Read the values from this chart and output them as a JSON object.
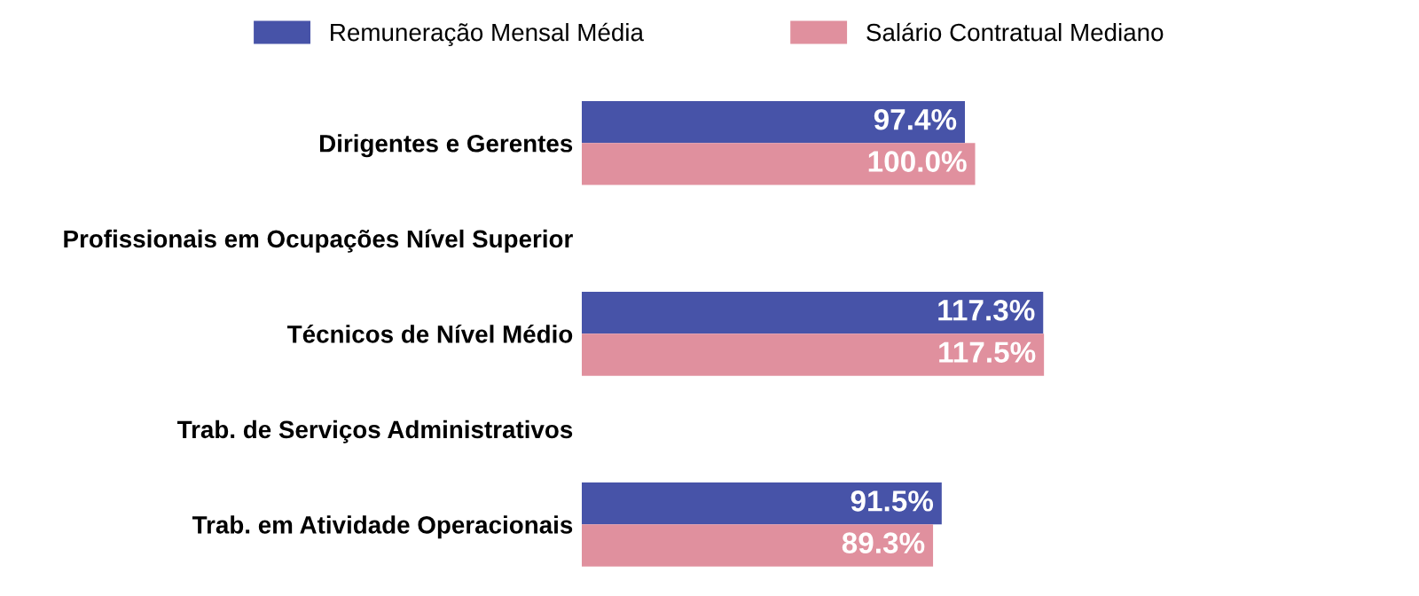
{
  "chart_data": {
    "type": "bar",
    "orientation": "horizontal",
    "categories": [
      "Dirigentes e Gerentes",
      "Profissionais em Ocupações Nível Superior",
      "Técnicos de Nível Médio",
      "Trab. de Serviços Administrativos",
      "Trab. em Atividade Operacionais"
    ],
    "series": [
      {
        "name": "Remuneração Mensal Média",
        "color": "#4753a8",
        "values": [
          97.4,
          null,
          117.3,
          null,
          91.5
        ],
        "value_labels": [
          "97.4%",
          null,
          "117.3%",
          null,
          "91.5%"
        ]
      },
      {
        "name": "Salário Contratual Mediano",
        "color": "#e0909e",
        "values": [
          100.0,
          null,
          117.5,
          null,
          89.3
        ],
        "value_labels": [
          "100.0%",
          null,
          "117.5%",
          null,
          "89.3%"
        ]
      }
    ],
    "tick_labels": "y",
    "grid": false,
    "legend": "top"
  }
}
